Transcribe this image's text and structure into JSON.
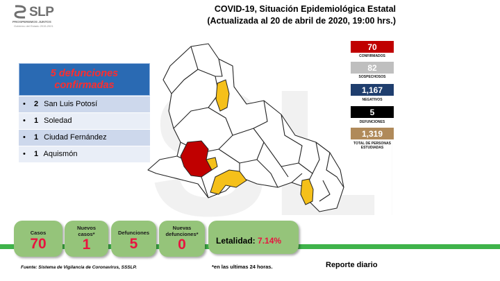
{
  "logo": {
    "text": "SLP",
    "tagline": "PROSPEREMOS JUNTOS",
    "subline": "Gobierno del Estado 2015-2021"
  },
  "header": {
    "title": "COVID-19, Situación Epidemiológica Estatal",
    "subtitle": "(Actualizada al 20 de abril de 2020, 19:00 hrs.)"
  },
  "deaths_panel": {
    "heading_line1": "5 defunciones",
    "heading_line2": "confirmadas",
    "bullet": "•",
    "rows": [
      {
        "count": "2",
        "place": "San Luis Potosí"
      },
      {
        "count": "1",
        "place": "Soledad"
      },
      {
        "count": "1",
        "place": "Ciudad Fernández"
      },
      {
        "count": "1",
        "place": "Aquismón"
      }
    ]
  },
  "stats": [
    {
      "value": "70",
      "label": "CONFIRMADOS",
      "color": "#c00000",
      "text_color": "#ffffff"
    },
    {
      "value": "82",
      "label": "SOSPECHOSOS",
      "color": "#bfbfbf",
      "text_color": "#ffffff"
    },
    {
      "value": "1,167",
      "label": "NEGATIVOS",
      "color": "#1f3e6e",
      "text_color": "#ffffff"
    },
    {
      "value": "5",
      "label": "DEFUNCIONES",
      "color": "#000000",
      "text_color": "#ffffff"
    },
    {
      "value": "1,319",
      "label": "TOTAL DE PERSONAS ESTUDIADAS",
      "color": "#b08a5a",
      "text_color": "#ffffff"
    }
  ],
  "cards": [
    {
      "label": "Casos",
      "value": "70"
    },
    {
      "label": "Nuevos casos*",
      "value": "1"
    },
    {
      "label": "Defunciones",
      "value": "5"
    },
    {
      "label": "Nuevas defunciones*",
      "value": "0"
    }
  ],
  "lethality": {
    "label": "Letalidad:",
    "value": "7.14%"
  },
  "footer": {
    "source": "Fuente: Sistema de Vigilancia de Coronavirus, SSSLP.",
    "note": "*en las ultimas 24 horas.",
    "report": "Reporte diario"
  },
  "colors": {
    "accent_red": "#e8143f",
    "card_green": "#95c47a",
    "bar_green": "#3fb34a",
    "map_yellow": "#f5c01a",
    "map_red": "#c00000"
  }
}
